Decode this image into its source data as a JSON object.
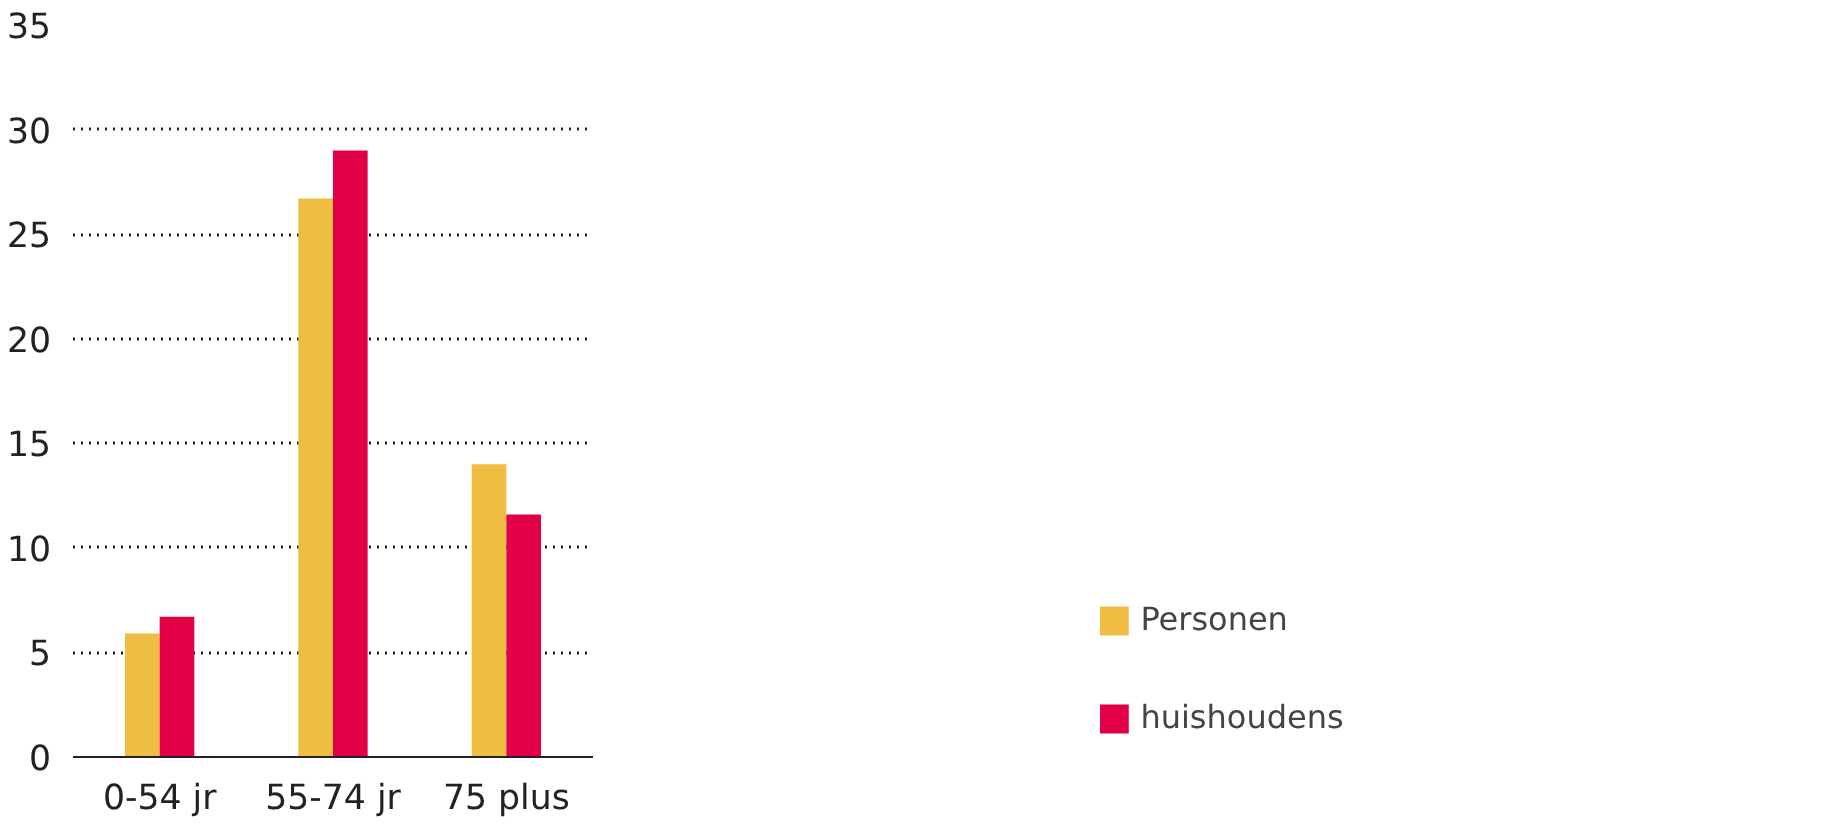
{
  "chart_data": {
    "type": "bar",
    "categories": [
      "0-54 jr",
      "55-74 jr",
      "75 plus"
    ],
    "series": [
      {
        "name": "Personen",
        "color": "#efbd42",
        "values": [
          5.9,
          26.7,
          14.0
        ]
      },
      {
        "name": "huishoudens",
        "color": "#e10045",
        "values": [
          6.7,
          29.0,
          11.6
        ]
      }
    ],
    "ylim": [
      0,
      35
    ],
    "yticks": [
      0,
      5,
      10,
      15,
      20,
      25,
      30,
      35
    ],
    "grid": "y",
    "legend": "bottom right"
  }
}
